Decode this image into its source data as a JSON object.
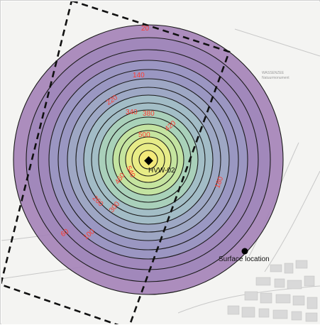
{
  "map": {
    "colors": {
      "contour_line": "#1a1a1a",
      "contour_label": "#ff3b30",
      "bounds": "#111111",
      "background": "#f3f3f1",
      "roads": "#bdbdbd",
      "ramp": [
        "#a583b8",
        "#9f88bb",
        "#9a97c2",
        "#9ea8c4",
        "#a3bec5",
        "#a9d1b8",
        "#c6e49e",
        "#e8ec86",
        "#f3e878"
      ]
    },
    "contours": {
      "labels": [
        {
          "id": "c20",
          "text": "20"
        },
        {
          "id": "c140",
          "text": "140"
        },
        {
          "id": "c220",
          "text": "220"
        },
        {
          "id": "c340",
          "text": "340"
        },
        {
          "id": "c380",
          "text": "380"
        },
        {
          "id": "c420",
          "text": "420"
        },
        {
          "id": "c500",
          "text": "500"
        },
        {
          "id": "c540",
          "text": "540"
        },
        {
          "id": "c460",
          "text": "460"
        },
        {
          "id": "c260",
          "text": "260"
        },
        {
          "id": "c300",
          "text": "300"
        },
        {
          "id": "c180",
          "text": "180"
        },
        {
          "id": "c60",
          "text": "60"
        },
        {
          "id": "c100",
          "text": "100"
        }
      ]
    },
    "markers": {
      "well": "HVW-02",
      "surface": "Surface location"
    },
    "basemap_text": {
      "place": "WASSENZEE",
      "sub": "Natuurmonument"
    }
  }
}
